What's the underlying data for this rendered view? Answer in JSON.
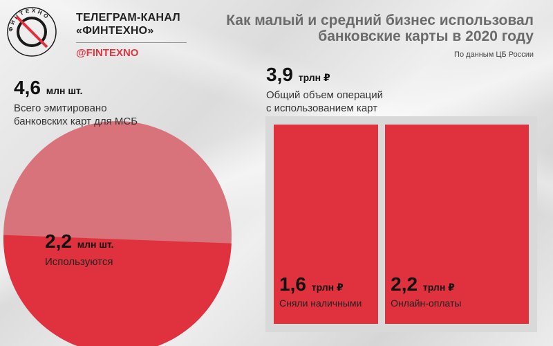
{
  "header": {
    "channel_line1": "ТЕЛЕГРАМ-КАНАЛ",
    "channel_line2": "«ФИНТЕХНО»",
    "handle": "@FINTEXNO",
    "logo_text": "ФИНТЕХНО"
  },
  "headline": {
    "title_line1": "Как малый и средний бизнес использовал",
    "title_line2": "банковские карты в 2020 году",
    "source": "По данным ЦБ России"
  },
  "colors": {
    "accent": "#e0323e",
    "pie_total": "#d9737b",
    "frame": "#d9d9d9"
  },
  "chart_data": [
    {
      "type": "pie",
      "total": {
        "value": "4,6",
        "unit": "млн шт.",
        "label_line1": "Всего эмитировано",
        "label_line2": "банковских карт для МСБ",
        "number": 4.6
      },
      "slices": [
        {
          "value": "2,2",
          "unit": "млн шт.",
          "label": "Используются",
          "number": 2.2
        }
      ]
    },
    {
      "type": "bar",
      "total": {
        "value": "3,9",
        "unit": "трлн ₽",
        "label_line1": "Общий объем операций",
        "label_line2": "с использованием карт",
        "number": 3.9
      },
      "parts": [
        {
          "value": "1,6",
          "unit": "трлн ₽",
          "label": "Сняли наличными",
          "number": 1.6
        },
        {
          "value": "2,2",
          "unit": "трлн ₽",
          "label": "Онлайн-оплаты",
          "number": 2.2
        }
      ]
    }
  ]
}
